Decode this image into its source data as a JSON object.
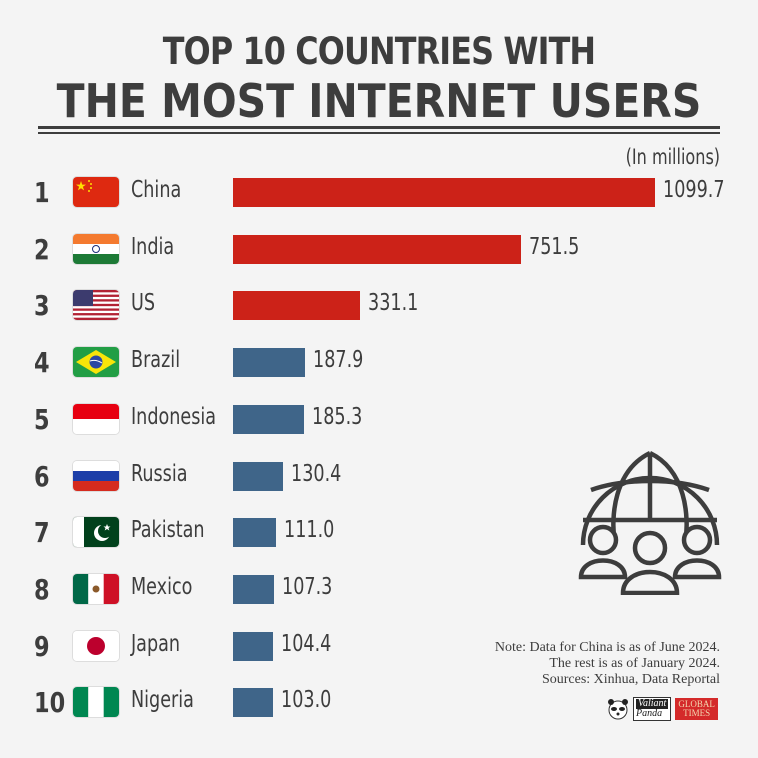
{
  "header": {
    "title_line1": "TOP 10 COUNTRIES WITH",
    "title_line2": "THE MOST INTERNET USERS",
    "units": "(In millions)"
  },
  "colors": {
    "top3_bar": "#cc2218",
    "other_bar": "#3f6589",
    "text": "#3d3d3d",
    "background": "#f4f4f4"
  },
  "rows": [
    {
      "rank": "1",
      "country": "China",
      "value": "1099.7",
      "flag": "china-flag"
    },
    {
      "rank": "2",
      "country": "India",
      "value": "751.5",
      "flag": "india-flag"
    },
    {
      "rank": "3",
      "country": "US",
      "value": "331.1",
      "flag": "us-flag"
    },
    {
      "rank": "4",
      "country": "Brazil",
      "value": "187.9",
      "flag": "brazil-flag"
    },
    {
      "rank": "5",
      "country": "Indonesia",
      "value": "185.3",
      "flag": "indonesia-flag"
    },
    {
      "rank": "6",
      "country": "Russia",
      "value": "130.4",
      "flag": "russia-flag"
    },
    {
      "rank": "7",
      "country": "Pakistan",
      "value": "111.0",
      "flag": "pakistan-flag"
    },
    {
      "rank": "8",
      "country": "Mexico",
      "value": "107.3",
      "flag": "mexico-flag"
    },
    {
      "rank": "9",
      "country": "Japan",
      "value": "104.4",
      "flag": "japan-flag"
    },
    {
      "rank": "10",
      "country": "Nigeria",
      "value": "103.0",
      "flag": "nigeria-flag"
    }
  ],
  "footer": {
    "note_line1": "Note: Data for China is as of June 2024.",
    "note_line2": "The rest is as of January 2024.",
    "note_line3": "Sources: Xinhua, Data Reportal",
    "logo1_top": "Valiant",
    "logo1_bottom": "Panda",
    "logo2_top": "GLOBAL",
    "logo2_bottom": "TIMES"
  },
  "chart_data": {
    "type": "bar",
    "orientation": "horizontal",
    "title": "TOP 10 COUNTRIES WITH THE MOST INTERNET USERS",
    "ylabel": "",
    "xlabel": "(In millions)",
    "categories": [
      "China",
      "India",
      "US",
      "Brazil",
      "Indonesia",
      "Russia",
      "Pakistan",
      "Mexico",
      "Japan",
      "Nigeria"
    ],
    "values": [
      1099.7,
      751.5,
      331.1,
      187.9,
      185.3,
      130.4,
      111.0,
      107.3,
      104.4,
      103.0
    ],
    "bar_colors": [
      "#cc2218",
      "#cc2218",
      "#cc2218",
      "#3f6589",
      "#3f6589",
      "#3f6589",
      "#3f6589",
      "#3f6589",
      "#3f6589",
      "#3f6589"
    ],
    "annotations": [
      "Note: Data for China is as of June 2024.",
      "The rest is as of January 2024.",
      "Sources: Xinhua, Data Reportal"
    ],
    "grid": false,
    "legend": null
  }
}
